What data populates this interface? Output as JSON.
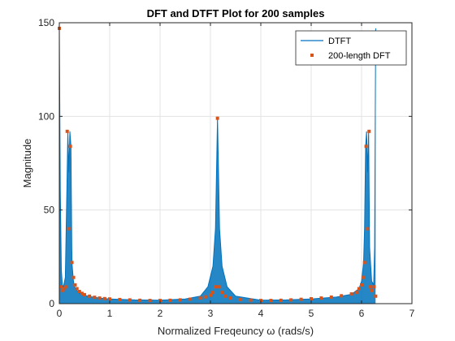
{
  "chart_data": {
    "type": "line",
    "title": "DFT and DTFT Plot for 200 samples",
    "xlabel": "Normalized Freqeuncy ω (rads/s)",
    "ylabel": "Magnitude",
    "xlim": [
      0,
      7
    ],
    "ylim": [
      0,
      150
    ],
    "xticks": [
      0,
      1,
      2,
      3,
      4,
      5,
      6,
      7
    ],
    "yticks": [
      0,
      50,
      100,
      150
    ],
    "grid": true,
    "legend_position": "top-right",
    "colors": {
      "dtft": "#0072BD",
      "dft": "#D95319"
    },
    "series": [
      {
        "name": "DTFT",
        "style": "line",
        "x": [
          0.0,
          0.02,
          0.04,
          0.06,
          0.08,
          0.12,
          0.15,
          0.17,
          0.19,
          0.21,
          0.23,
          0.25,
          0.28,
          0.3,
          0.35,
          0.4,
          0.5,
          0.6,
          0.8,
          1.0,
          1.5,
          2.0,
          2.5,
          2.8,
          2.95,
          3.05,
          3.1,
          3.14,
          3.18,
          3.23,
          3.33,
          3.5,
          4.0,
          4.5,
          5.0,
          5.5,
          5.8,
          5.95,
          6.0,
          6.04,
          6.06,
          6.08,
          6.1,
          6.12,
          6.14,
          6.16,
          6.2,
          6.24,
          6.26,
          6.28
        ],
        "y": [
          147,
          60,
          18,
          10,
          9,
          14,
          60,
          92,
          70,
          92,
          84,
          22,
          12,
          9,
          7,
          5.5,
          4.5,
          3.8,
          3,
          2.5,
          2,
          1.8,
          2.5,
          4,
          9,
          20,
          40,
          99,
          40,
          20,
          9,
          4,
          1.8,
          2,
          2.5,
          3.5,
          5,
          8,
          12,
          22,
          40,
          84,
          92,
          70,
          92,
          30,
          12,
          10,
          30,
          147
        ]
      },
      {
        "name": "200-length DFT",
        "style": "markers",
        "x": [
          0.0,
          0.03,
          0.06,
          0.09,
          0.125,
          0.157,
          0.188,
          0.22,
          0.251,
          0.283,
          0.314,
          0.35,
          0.4,
          0.45,
          0.5,
          0.6,
          0.7,
          0.8,
          0.9,
          1.0,
          1.2,
          1.4,
          1.6,
          1.8,
          2.0,
          2.2,
          2.4,
          2.6,
          2.8,
          2.9,
          3.0,
          3.05,
          3.1,
          3.14,
          3.18,
          3.23,
          3.3,
          3.4,
          3.6,
          3.8,
          4.0,
          4.2,
          4.4,
          4.6,
          4.8,
          5.0,
          5.2,
          5.4,
          5.6,
          5.8,
          5.9,
          5.95,
          6.0,
          6.03,
          6.06,
          6.09,
          6.12,
          6.15,
          6.18,
          6.21,
          6.25,
          6.28
        ],
        "y": [
          147,
          9,
          7,
          8,
          9,
          92,
          40,
          84,
          22,
          14,
          10,
          8,
          6.5,
          5.5,
          4.8,
          4,
          3.4,
          3,
          2.7,
          2.5,
          2.2,
          2,
          1.8,
          1.7,
          1.7,
          1.8,
          2,
          2.4,
          3,
          3.6,
          4.5,
          6,
          9,
          99,
          9,
          6,
          4,
          3,
          2.2,
          1.9,
          1.7,
          1.7,
          1.8,
          2,
          2.3,
          2.6,
          3,
          3.5,
          4.2,
          5.2,
          6,
          8,
          10,
          14,
          22,
          84,
          40,
          92,
          9,
          7,
          9,
          4
        ]
      }
    ]
  }
}
